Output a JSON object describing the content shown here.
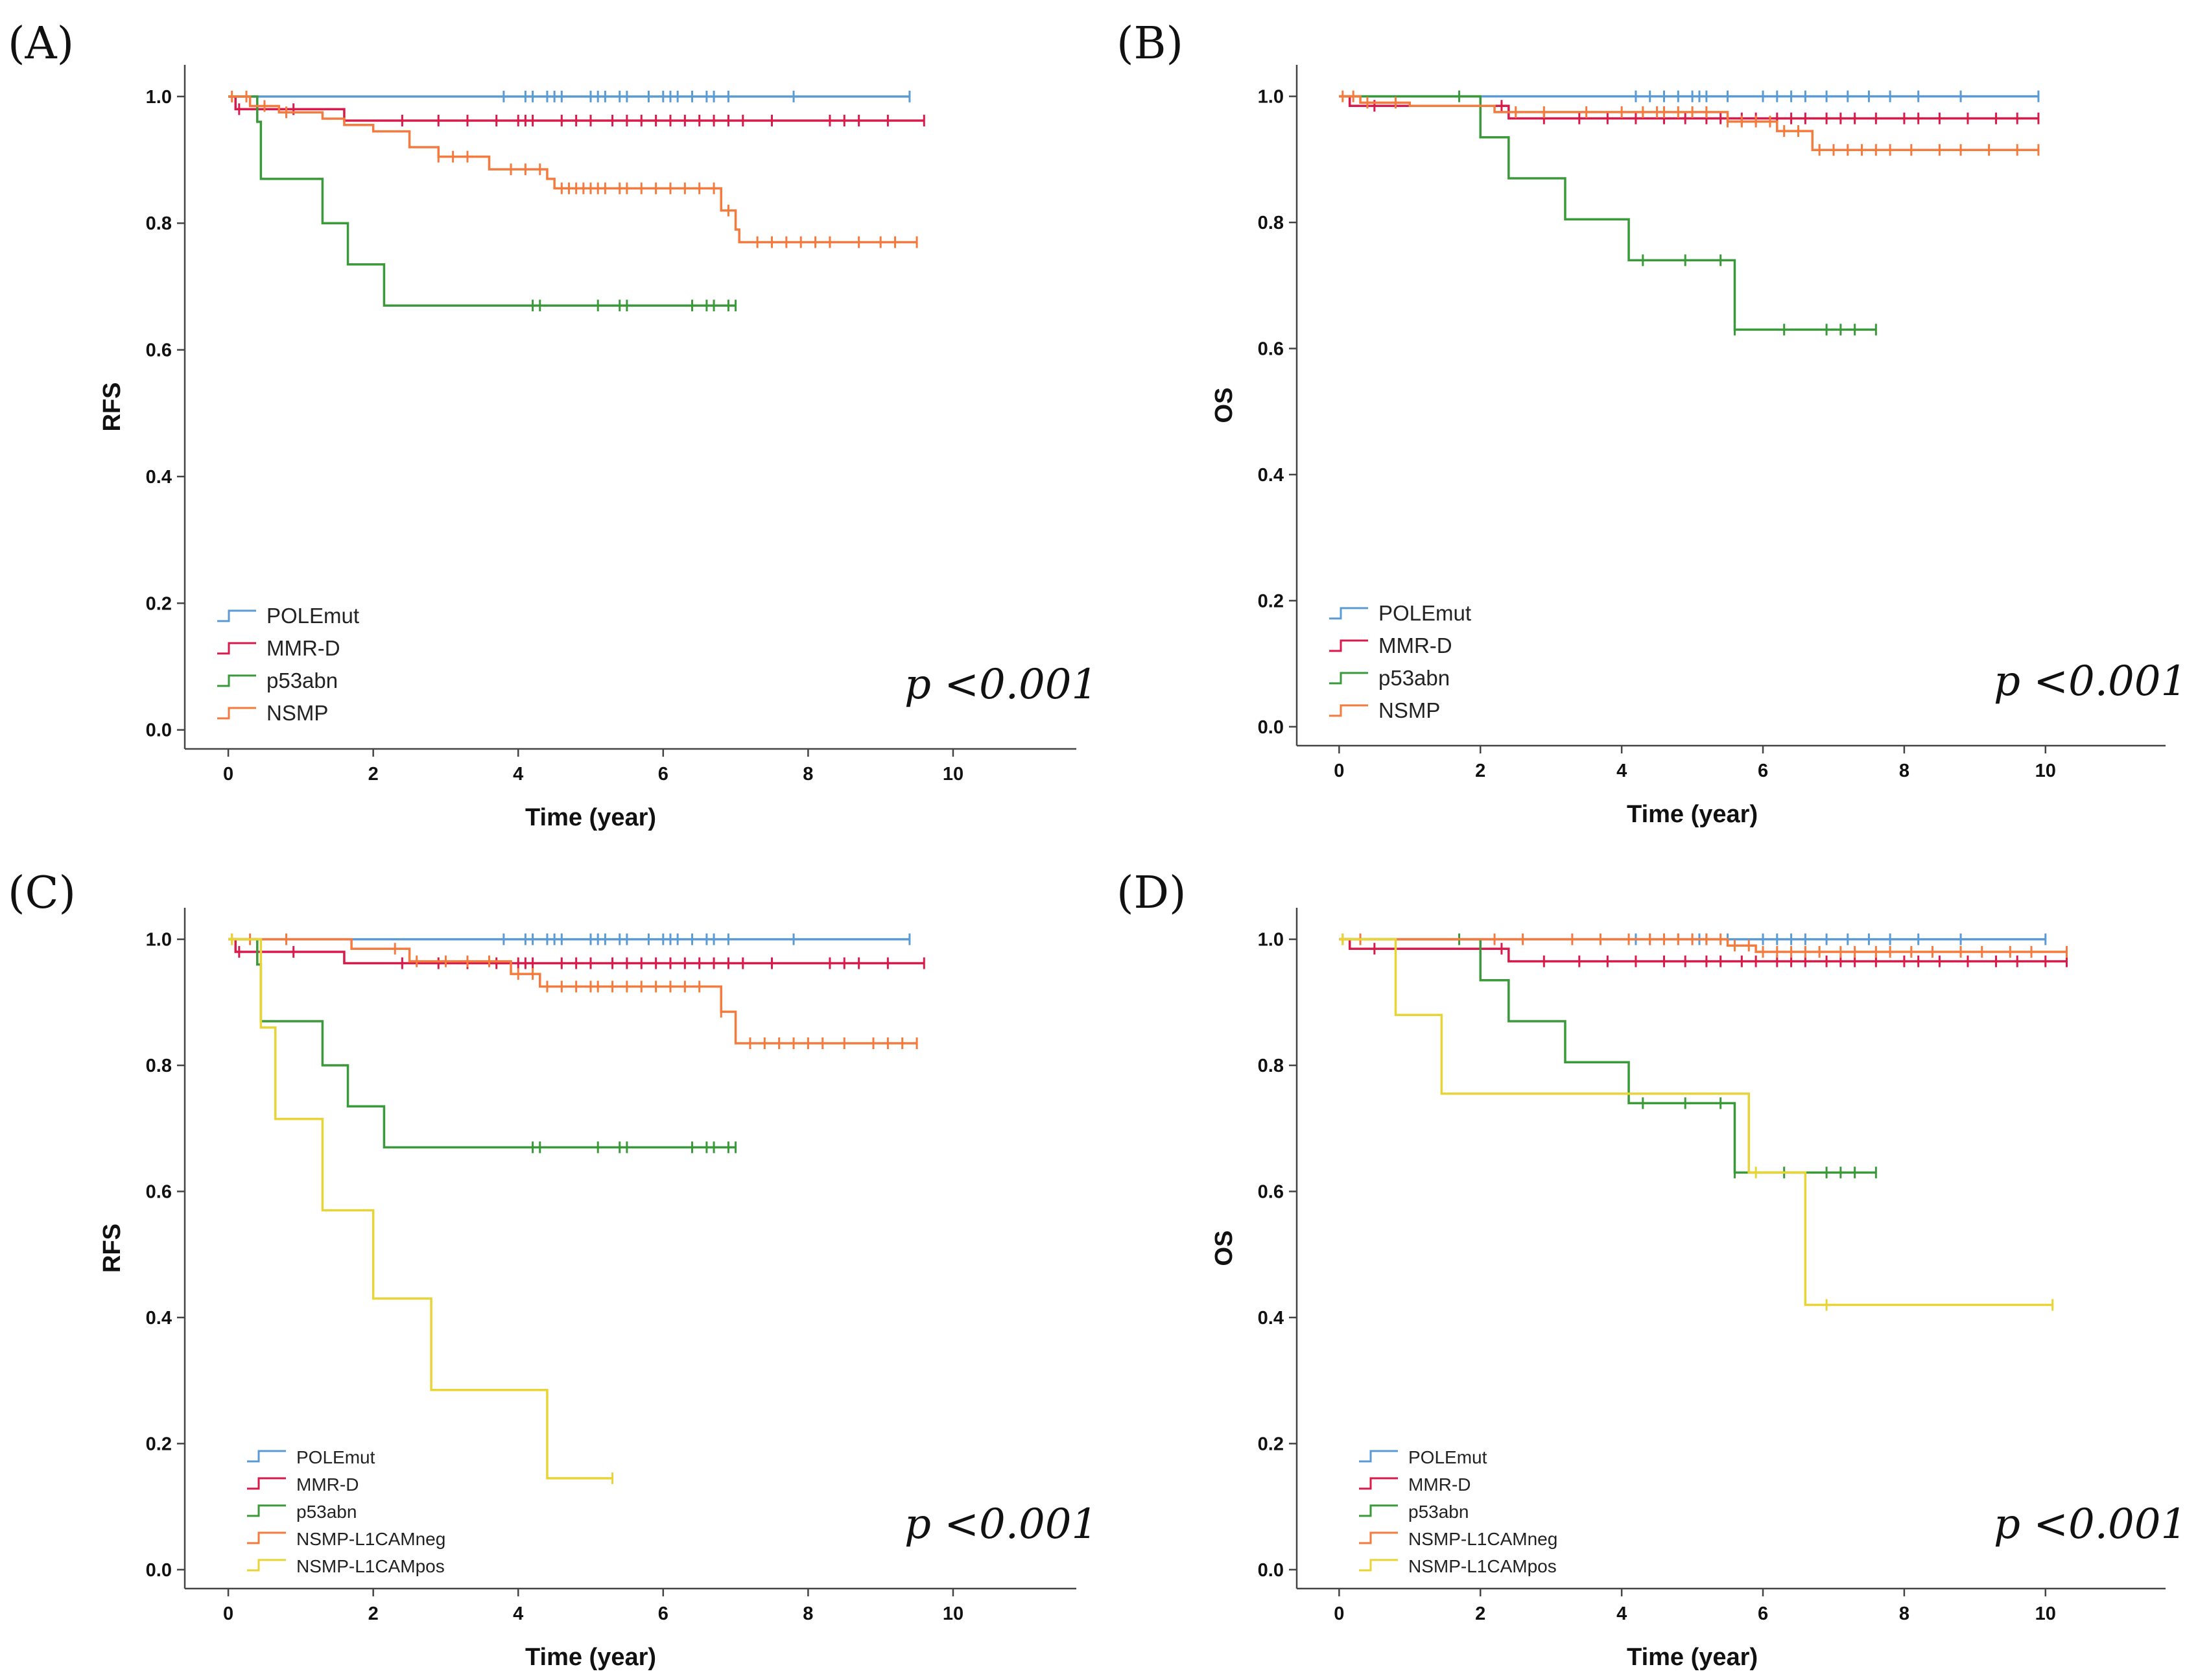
{
  "colors": {
    "POLEmut": "#5b9bd5",
    "MMR-D": "#d81b4a",
    "p53abn": "#3a9a3a",
    "NSMP": "#f47a3d",
    "NSMP-L1CAMneg": "#f47a3d",
    "NSMP-L1CAMpos": "#e8d535"
  },
  "chart_data": [
    {
      "panel": "(A)",
      "type": "line",
      "xlabel": "Time (year)",
      "ylabel": "RFS",
      "xticks": [
        "0",
        "2",
        "4",
        "6",
        "8",
        "10"
      ],
      "yticks": [
        "0.0",
        "0.2",
        "0.4",
        "0.6",
        "0.8",
        "1.0"
      ],
      "xlim": [
        -0.6,
        11.7
      ],
      "ylim": [
        -0.03,
        1.05
      ],
      "legend_position": "bottom-left",
      "pvalue": {
        "p": "p",
        "text": " <0.001"
      },
      "series": [
        {
          "name": "POLEmut",
          "steps": [
            [
              0,
              1.0
            ],
            [
              9.4,
              1.0
            ]
          ],
          "censored": [
            3.8,
            4.1,
            4.2,
            4.4,
            4.5,
            4.6,
            5.0,
            5.1,
            5.2,
            5.4,
            5.5,
            5.8,
            6.0,
            6.1,
            6.2,
            6.4,
            6.6,
            6.7,
            6.9,
            7.8,
            9.4
          ]
        },
        {
          "name": "MMR-D",
          "steps": [
            [
              0,
              1.0
            ],
            [
              0.1,
              0.98
            ],
            [
              1.6,
              0.962
            ],
            [
              9.6,
              0.962
            ]
          ],
          "censored": [
            0.15,
            0.9,
            2.4,
            2.9,
            3.3,
            3.7,
            4.0,
            4.1,
            4.2,
            4.6,
            4.8,
            5.0,
            5.3,
            5.5,
            5.7,
            5.9,
            6.1,
            6.3,
            6.5,
            6.7,
            6.9,
            7.1,
            7.5,
            8.3,
            8.5,
            8.7,
            9.1,
            9.6
          ]
        },
        {
          "name": "p53abn",
          "steps": [
            [
              0,
              1.0
            ],
            [
              0.4,
              0.96
            ],
            [
              0.45,
              0.87
            ],
            [
              1.3,
              0.8
            ],
            [
              1.65,
              0.735
            ],
            [
              2.15,
              0.67
            ],
            [
              7.0,
              0.67
            ]
          ],
          "censored": [
            4.2,
            4.3,
            5.1,
            5.4,
            5.5,
            6.4,
            6.6,
            6.7,
            6.9,
            7.0
          ]
        },
        {
          "name": "NSMP",
          "steps": [
            [
              0,
              1.0
            ],
            [
              0.3,
              0.985
            ],
            [
              0.7,
              0.975
            ],
            [
              1.3,
              0.965
            ],
            [
              1.6,
              0.955
            ],
            [
              2.0,
              0.945
            ],
            [
              2.5,
              0.92
            ],
            [
              2.9,
              0.905
            ],
            [
              3.6,
              0.885
            ],
            [
              4.4,
              0.87
            ],
            [
              4.5,
              0.855
            ],
            [
              6.8,
              0.82
            ],
            [
              7.0,
              0.79
            ],
            [
              7.05,
              0.77
            ],
            [
              9.5,
              0.77
            ]
          ],
          "censored": [
            0.05,
            0.25,
            0.5,
            0.8,
            2.9,
            3.1,
            3.3,
            3.9,
            4.1,
            4.3,
            4.6,
            4.7,
            4.8,
            4.9,
            5.0,
            5.1,
            5.2,
            5.4,
            5.5,
            5.7,
            5.9,
            6.1,
            6.3,
            6.5,
            6.7,
            6.9,
            7.3,
            7.5,
            7.7,
            7.9,
            8.1,
            8.3,
            8.7,
            9.0,
            9.2,
            9.5
          ]
        }
      ]
    },
    {
      "panel": "(B)",
      "type": "line",
      "xlabel": "Time (year)",
      "ylabel": "OS",
      "xticks": [
        "0",
        "2",
        "4",
        "6",
        "8",
        "10"
      ],
      "yticks": [
        "0.0",
        "0.2",
        "0.4",
        "0.6",
        "0.8",
        "1.0"
      ],
      "xlim": [
        -0.6,
        11.7
      ],
      "ylim": [
        -0.03,
        1.05
      ],
      "legend_position": "bottom-left",
      "pvalue": {
        "p": "p",
        "text": " <0.001"
      },
      "series": [
        {
          "name": "POLEmut",
          "steps": [
            [
              0,
              1.0
            ],
            [
              9.9,
              1.0
            ]
          ],
          "censored": [
            4.2,
            4.4,
            4.6,
            4.8,
            5.0,
            5.1,
            5.2,
            5.5,
            6.0,
            6.2,
            6.4,
            6.6,
            6.9,
            7.2,
            7.5,
            7.8,
            8.2,
            8.8,
            9.9
          ]
        },
        {
          "name": "MMR-D",
          "steps": [
            [
              0,
              1.0
            ],
            [
              0.15,
              0.985
            ],
            [
              2.4,
              0.965
            ],
            [
              9.9,
              0.965
            ]
          ],
          "censored": [
            0.5,
            2.3,
            2.9,
            3.4,
            3.8,
            4.2,
            4.6,
            4.9,
            5.2,
            5.4,
            5.7,
            5.9,
            6.2,
            6.4,
            6.6,
            6.9,
            7.1,
            7.3,
            7.6,
            8.0,
            8.2,
            8.5,
            8.9,
            9.3,
            9.6,
            9.9
          ]
        },
        {
          "name": "p53abn",
          "steps": [
            [
              0,
              1.0
            ],
            [
              2.0,
              0.935
            ],
            [
              2.4,
              0.87
            ],
            [
              3.2,
              0.805
            ],
            [
              4.1,
              0.74
            ],
            [
              5.6,
              0.63
            ],
            [
              7.6,
              0.63
            ]
          ],
          "censored": [
            1.7,
            4.3,
            4.9,
            5.4,
            5.6,
            6.3,
            6.9,
            7.1,
            7.3,
            7.6
          ]
        },
        {
          "name": "NSMP",
          "steps": [
            [
              0,
              1.0
            ],
            [
              0.3,
              0.99
            ],
            [
              1.0,
              0.985
            ],
            [
              2.2,
              0.975
            ],
            [
              5.5,
              0.96
            ],
            [
              6.2,
              0.945
            ],
            [
              6.7,
              0.915
            ],
            [
              9.9,
              0.915
            ]
          ],
          "censored": [
            0.05,
            0.2,
            0.4,
            0.8,
            2.5,
            2.9,
            3.5,
            4.0,
            4.3,
            4.5,
            4.6,
            4.8,
            5.0,
            5.2,
            5.5,
            5.7,
            5.9,
            6.1,
            6.3,
            6.5,
            6.8,
            7.0,
            7.2,
            7.4,
            7.6,
            7.8,
            8.1,
            8.5,
            8.8,
            9.2,
            9.6,
            9.9
          ]
        }
      ]
    },
    {
      "panel": "(C)",
      "type": "line",
      "xlabel": "Time (year)",
      "ylabel": "RFS",
      "xticks": [
        "0",
        "2",
        "4",
        "6",
        "8",
        "10"
      ],
      "yticks": [
        "0.0",
        "0.2",
        "0.4",
        "0.6",
        "0.8",
        "1.0"
      ],
      "xlim": [
        -0.6,
        11.7
      ],
      "ylim": [
        -0.03,
        1.05
      ],
      "legend_position": "bottom-left",
      "legend_small": true,
      "pvalue": {
        "p": "p",
        "text": " <0.001"
      },
      "series": [
        {
          "name": "POLEmut",
          "steps": [
            [
              0,
              1.0
            ],
            [
              9.4,
              1.0
            ]
          ],
          "censored": [
            3.8,
            4.1,
            4.2,
            4.4,
            4.5,
            4.6,
            5.0,
            5.1,
            5.2,
            5.4,
            5.5,
            5.8,
            6.0,
            6.1,
            6.2,
            6.4,
            6.6,
            6.7,
            6.9,
            7.8,
            9.4
          ]
        },
        {
          "name": "MMR-D",
          "steps": [
            [
              0,
              1.0
            ],
            [
              0.1,
              0.98
            ],
            [
              1.6,
              0.962
            ],
            [
              9.6,
              0.962
            ]
          ],
          "censored": [
            0.15,
            0.9,
            2.4,
            2.9,
            3.3,
            3.7,
            4.0,
            4.1,
            4.2,
            4.6,
            4.8,
            5.0,
            5.3,
            5.5,
            5.7,
            5.9,
            6.1,
            6.3,
            6.5,
            6.7,
            6.9,
            7.1,
            7.5,
            8.3,
            8.5,
            8.7,
            9.1,
            9.6
          ]
        },
        {
          "name": "p53abn",
          "steps": [
            [
              0,
              1.0
            ],
            [
              0.4,
              0.96
            ],
            [
              0.45,
              0.87
            ],
            [
              1.3,
              0.8
            ],
            [
              1.65,
              0.735
            ],
            [
              2.15,
              0.67
            ],
            [
              7.0,
              0.67
            ]
          ],
          "censored": [
            4.2,
            4.3,
            5.1,
            5.4,
            5.5,
            6.4,
            6.6,
            6.7,
            6.9,
            7.0
          ]
        },
        {
          "name": "NSMP-L1CAMneg",
          "steps": [
            [
              0,
              1.0
            ],
            [
              1.7,
              0.985
            ],
            [
              2.5,
              0.965
            ],
            [
              3.9,
              0.945
            ],
            [
              4.3,
              0.925
            ],
            [
              6.8,
              0.885
            ],
            [
              7.0,
              0.835
            ],
            [
              9.5,
              0.835
            ]
          ],
          "censored": [
            0.05,
            0.3,
            0.8,
            2.3,
            2.6,
            3.0,
            3.3,
            3.6,
            4.0,
            4.2,
            4.4,
            4.6,
            4.8,
            5.0,
            5.1,
            5.3,
            5.5,
            5.7,
            5.9,
            6.1,
            6.3,
            6.5,
            6.8,
            7.2,
            7.4,
            7.6,
            7.8,
            8.0,
            8.2,
            8.5,
            8.9,
            9.1,
            9.3,
            9.5
          ]
        },
        {
          "name": "NSMP-L1CAMpos",
          "steps": [
            [
              0,
              1.0
            ],
            [
              0.45,
              0.86
            ],
            [
              0.65,
              0.715
            ],
            [
              1.3,
              0.57
            ],
            [
              2.0,
              0.43
            ],
            [
              2.8,
              0.285
            ],
            [
              4.4,
              0.145
            ],
            [
              5.3,
              0.145
            ]
          ],
          "censored": [
            0.05,
            5.3
          ]
        }
      ]
    },
    {
      "panel": "(D)",
      "type": "line",
      "xlabel": "Time (year)",
      "ylabel": "OS",
      "xticks": [
        "0",
        "2",
        "4",
        "6",
        "8",
        "10"
      ],
      "yticks": [
        "0.0",
        "0.2",
        "0.4",
        "0.6",
        "0.8",
        "1.0"
      ],
      "xlim": [
        -0.6,
        11.7
      ],
      "ylim": [
        -0.03,
        1.05
      ],
      "legend_position": "bottom-left",
      "legend_small": true,
      "pvalue": {
        "p": "p",
        "text": " <0.001"
      },
      "series": [
        {
          "name": "POLEmut",
          "steps": [
            [
              0,
              1.0
            ],
            [
              10.0,
              1.0
            ]
          ],
          "censored": [
            4.2,
            4.4,
            4.6,
            4.8,
            5.0,
            5.1,
            5.2,
            5.5,
            6.0,
            6.2,
            6.4,
            6.6,
            6.9,
            7.2,
            7.5,
            7.8,
            8.2,
            8.8,
            10.0
          ]
        },
        {
          "name": "MMR-D",
          "steps": [
            [
              0,
              1.0
            ],
            [
              0.15,
              0.985
            ],
            [
              2.4,
              0.965
            ],
            [
              10.3,
              0.965
            ]
          ],
          "censored": [
            0.5,
            2.3,
            2.9,
            3.4,
            3.8,
            4.2,
            4.6,
            4.9,
            5.2,
            5.4,
            5.7,
            5.9,
            6.2,
            6.4,
            6.6,
            6.9,
            7.1,
            7.3,
            7.6,
            8.0,
            8.2,
            8.5,
            8.9,
            9.3,
            9.6,
            10.0,
            10.3
          ]
        },
        {
          "name": "p53abn",
          "steps": [
            [
              0,
              1.0
            ],
            [
              2.0,
              0.935
            ],
            [
              2.4,
              0.87
            ],
            [
              3.2,
              0.805
            ],
            [
              4.1,
              0.74
            ],
            [
              5.6,
              0.63
            ],
            [
              7.6,
              0.63
            ]
          ],
          "censored": [
            1.7,
            4.3,
            4.9,
            5.4,
            5.6,
            6.3,
            6.9,
            7.1,
            7.3,
            7.6
          ]
        },
        {
          "name": "NSMP-L1CAMneg",
          "steps": [
            [
              0,
              1.0
            ],
            [
              5.5,
              0.99
            ],
            [
              5.9,
              0.98
            ],
            [
              10.3,
              0.98
            ]
          ],
          "censored": [
            0.05,
            0.3,
            2.2,
            2.6,
            3.3,
            3.7,
            4.1,
            4.4,
            4.6,
            4.8,
            5.0,
            5.2,
            5.4,
            5.6,
            5.8,
            6.0,
            6.2,
            6.4,
            6.6,
            6.8,
            7.1,
            7.3,
            7.6,
            7.8,
            8.1,
            8.4,
            8.8,
            9.1,
            9.5,
            9.8,
            10.3
          ]
        },
        {
          "name": "NSMP-L1CAMpos",
          "steps": [
            [
              0,
              1.0
            ],
            [
              0.8,
              0.88
            ],
            [
              1.45,
              0.755
            ],
            [
              5.8,
              0.63
            ],
            [
              6.6,
              0.42
            ],
            [
              10.1,
              0.42
            ]
          ],
          "censored": [
            0.05,
            5.9,
            6.9,
            10.1
          ]
        }
      ]
    }
  ]
}
